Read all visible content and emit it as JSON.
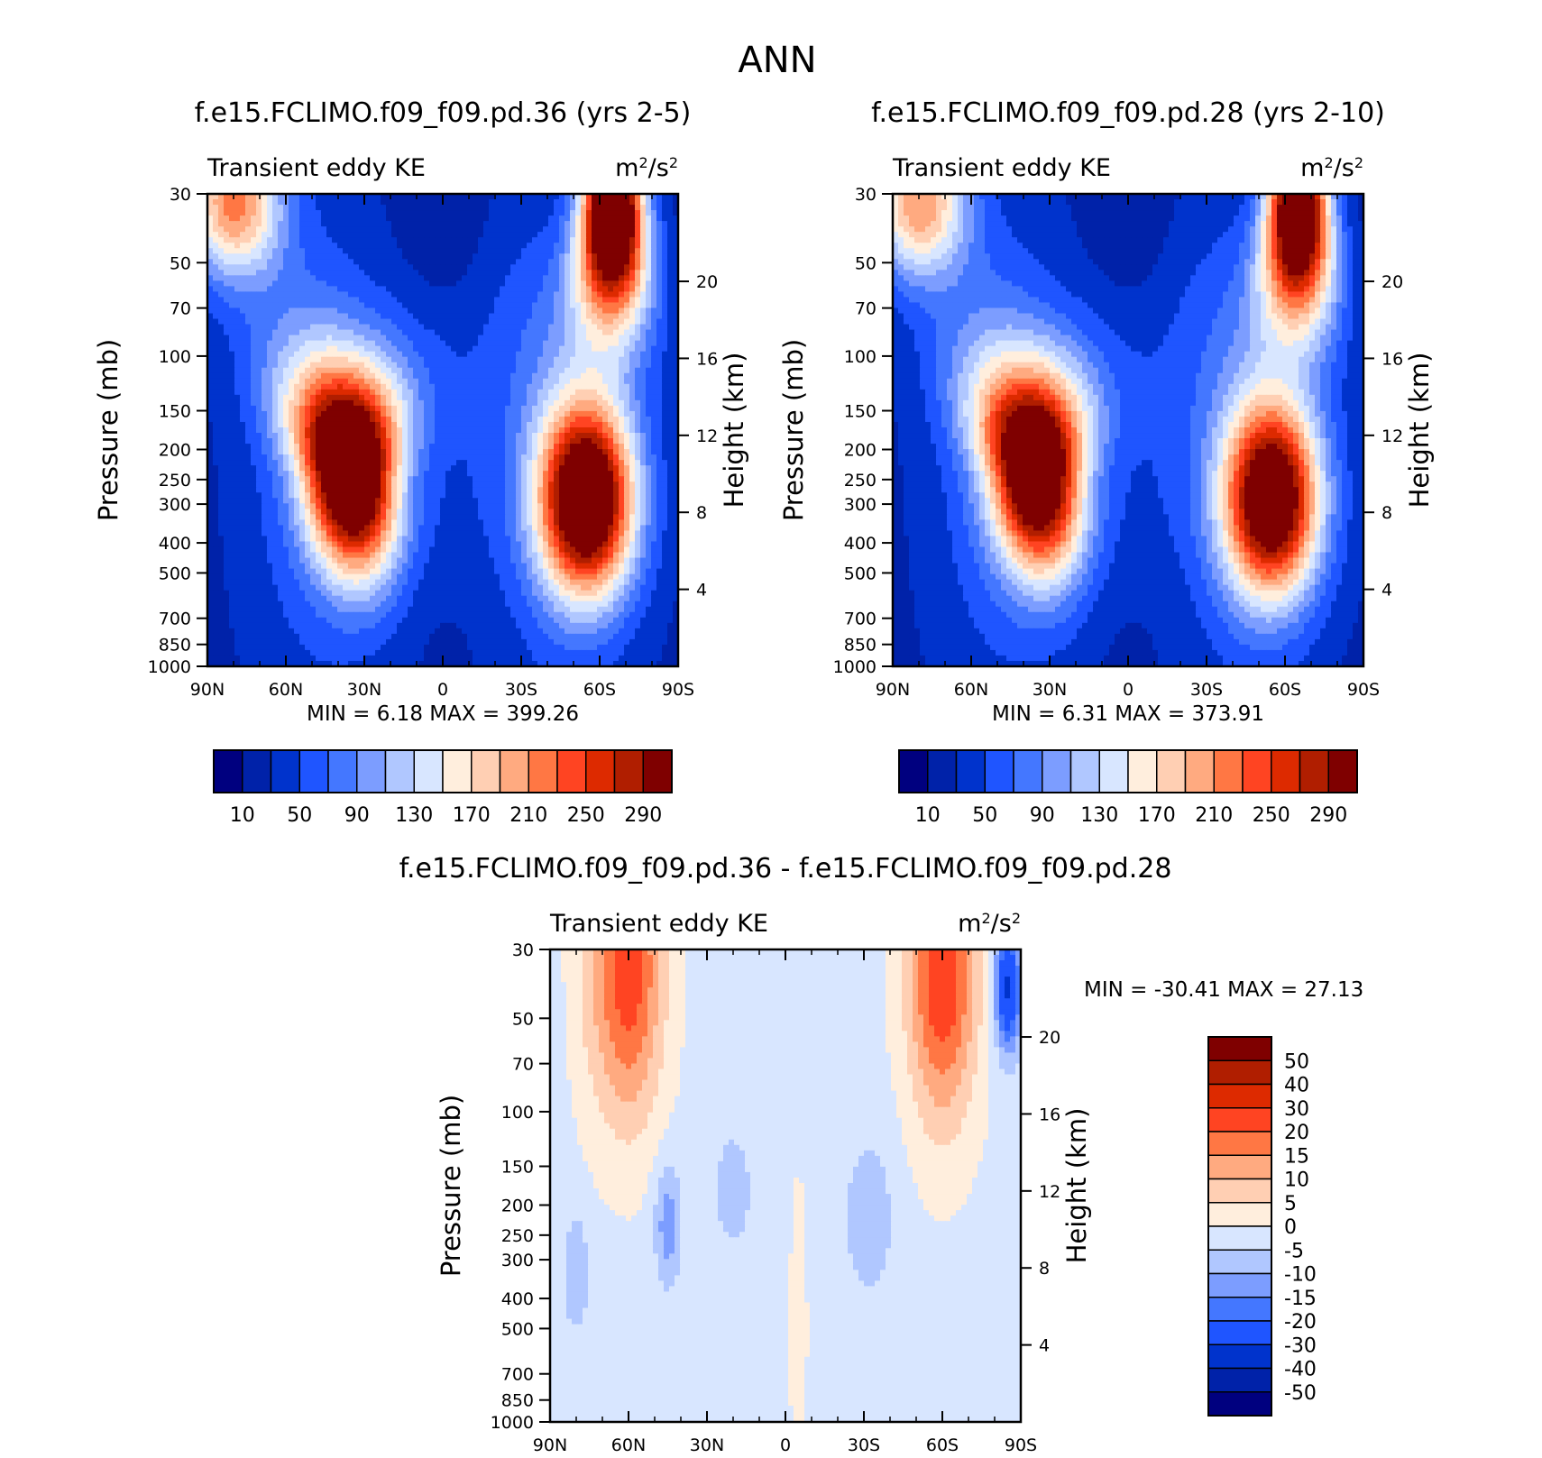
{
  "figure": {
    "title": "ANN"
  },
  "colors": {
    "field_levels": [
      "#00007f",
      "#0022a9",
      "#0033cc",
      "#1f55ff",
      "#4477ff",
      "#7c9dff",
      "#b0c7ff",
      "#d8e6ff",
      "#ffeedd",
      "#ffcfb3",
      "#ffaa80",
      "#ff7744",
      "#ff4422",
      "#dd2a00",
      "#b01e00",
      "#7f0000"
    ],
    "diff_levels": [
      "#00007f",
      "#0022a9",
      "#0033cc",
      "#1f55ff",
      "#4477ff",
      "#7c9dff",
      "#b0c7ff",
      "#d8e6ff",
      "#ffeedd",
      "#ffcfb3",
      "#ffaa80",
      "#ff7744",
      "#ff4422",
      "#dd2a00",
      "#b01e00",
      "#7f0000"
    ]
  },
  "chart_data": [
    {
      "type": "heatmap",
      "panel": "top-left",
      "title": "f.e15.FCLIMO.f09_f09.pd.36 (yrs 2-5)",
      "left_label": "Transient eddy KE",
      "units_label": "m²/s²",
      "ylabel": "Pressure (mb)",
      "y2label": "Height (km)",
      "x_ticks": [
        "90N",
        "60N",
        "30N",
        "0",
        "30S",
        "60S",
        "90S"
      ],
      "y_ticks": [
        30,
        50,
        70,
        100,
        150,
        200,
        250,
        300,
        400,
        500,
        700,
        850,
        1000
      ],
      "y2_ticks": [
        20,
        16,
        12,
        8,
        4
      ],
      "stats": {
        "min_label": "MIN =",
        "min": "6.18",
        "max_label": "MAX =",
        "max": "399.26"
      },
      "colorbar_labels": [
        "10",
        "50",
        "90",
        "130",
        "170",
        "210",
        "250",
        "290"
      ],
      "colorbar_position": "bottom",
      "features": [
        {
          "lat": 35,
          "p": 230,
          "value": 360
        },
        {
          "lat": -55,
          "p": 290,
          "value": 330
        },
        {
          "lat": -65,
          "p": 32,
          "value": 399
        },
        {
          "lat": 80,
          "p": 32,
          "value": 190
        }
      ]
    },
    {
      "type": "heatmap",
      "panel": "top-right",
      "title": "f.e15.FCLIMO.f09_f09.pd.28 (yrs 2-10)",
      "left_label": "Transient eddy KE",
      "units_label": "m²/s²",
      "ylabel": "Pressure (mb)",
      "y2label": "Height (km)",
      "x_ticks": [
        "90N",
        "60N",
        "30N",
        "0",
        "30S",
        "60S",
        "90S"
      ],
      "y_ticks": [
        30,
        50,
        70,
        100,
        150,
        200,
        250,
        300,
        400,
        500,
        700,
        850,
        1000
      ],
      "y2_ticks": [
        20,
        16,
        12,
        8,
        4
      ],
      "stats": {
        "min_label": "MIN =",
        "min": "6.31",
        "max_label": "MAX =",
        "max": "373.91"
      },
      "colorbar_labels": [
        "10",
        "50",
        "90",
        "130",
        "170",
        "210",
        "250",
        "290"
      ],
      "colorbar_position": "bottom",
      "features": [
        {
          "lat": 35,
          "p": 230,
          "value": 340
        },
        {
          "lat": -55,
          "p": 290,
          "value": 310
        },
        {
          "lat": -65,
          "p": 32,
          "value": 374
        },
        {
          "lat": 80,
          "p": 32,
          "value": 180
        }
      ]
    },
    {
      "type": "heatmap",
      "panel": "bottom",
      "title": "f.e15.FCLIMO.f09_f09.pd.36 - f.e15.FCLIMO.f09_f09.pd.28",
      "left_label": "Transient eddy KE",
      "units_label": "m²/s²",
      "ylabel": "Pressure (mb)",
      "y2label": "Height (km)",
      "x_ticks": [
        "90N",
        "60N",
        "30N",
        "0",
        "30S",
        "60S",
        "90S"
      ],
      "y_ticks": [
        30,
        50,
        70,
        100,
        150,
        200,
        250,
        300,
        400,
        500,
        700,
        850,
        1000
      ],
      "y2_ticks": [
        20,
        16,
        12,
        8,
        4
      ],
      "stats": {
        "min_label": "MIN =",
        "min": "-30.41",
        "max_label": "MAX =",
        "max": "27.13"
      },
      "colorbar_labels": [
        "50",
        "40",
        "30",
        "20",
        "15",
        "10",
        "5",
        "0",
        "-5",
        "-10",
        "-15",
        "-20",
        "-30",
        "-40",
        "-50"
      ],
      "colorbar_position": "right",
      "features": [
        {
          "lat": 60,
          "p": 35,
          "value": 25
        },
        {
          "lat": -60,
          "p": 35,
          "value": 27
        },
        {
          "lat": 45,
          "p": 230,
          "value": -12
        },
        {
          "lat": 80,
          "p": 330,
          "value": -8
        },
        {
          "lat": -85,
          "p": 40,
          "value": -30
        }
      ]
    }
  ]
}
